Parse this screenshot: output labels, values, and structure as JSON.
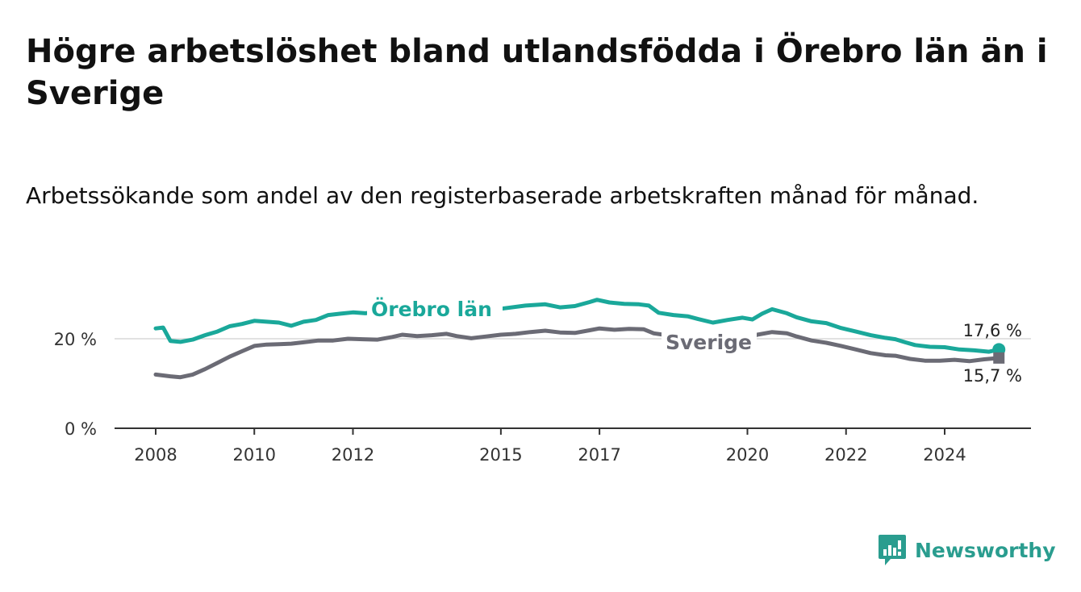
{
  "title": "Högre arbetslöshet bland utlandsfödda i Örebro län än i Sverige",
  "subtitle": "Arbetssökande som andel av den registerbaserade arbetskraften månad för månad.",
  "brand": {
    "name": "Newsworthy",
    "icon": "newsworthy-logo-icon",
    "color": "#2a9d8f"
  },
  "chart_data": {
    "type": "line",
    "ylim": [
      0,
      30
    ],
    "xlim": [
      2008,
      2025.8
    ],
    "y_ticks": [
      {
        "value": 0,
        "label": "0 %"
      },
      {
        "value": 20,
        "label": "20 %"
      }
    ],
    "x_ticks": [
      {
        "value": 2008,
        "label": "2008"
      },
      {
        "value": 2010,
        "label": "2010"
      },
      {
        "value": 2012,
        "label": "2012"
      },
      {
        "value": 2015,
        "label": "2015"
      },
      {
        "value": 2017,
        "label": "2017"
      },
      {
        "value": 2020,
        "label": "2020"
      },
      {
        "value": 2022,
        "label": "2022"
      },
      {
        "value": 2024,
        "label": "2024"
      }
    ],
    "grid": "horizontal",
    "series": [
      {
        "name": "Örebro län",
        "color": "#1aa89a",
        "end_label": "17,6 %",
        "points": [
          [
            2008.0,
            22.3
          ],
          [
            2008.15,
            22.5
          ],
          [
            2008.3,
            19.5
          ],
          [
            2008.5,
            19.3
          ],
          [
            2008.75,
            19.8
          ],
          [
            2009.0,
            20.8
          ],
          [
            2009.25,
            21.6
          ],
          [
            2009.5,
            22.8
          ],
          [
            2009.75,
            23.3
          ],
          [
            2010.0,
            24.0
          ],
          [
            2010.25,
            23.8
          ],
          [
            2010.5,
            23.6
          ],
          [
            2010.75,
            22.9
          ],
          [
            2011.0,
            23.8
          ],
          [
            2011.25,
            24.2
          ],
          [
            2011.5,
            25.3
          ],
          [
            2011.75,
            25.6
          ],
          [
            2012.0,
            25.9
          ],
          [
            2012.25,
            25.7
          ],
          [
            2012.5,
            26.0
          ],
          [
            2013.5,
            25.6
          ],
          [
            2014.5,
            25.8
          ],
          [
            2015.0,
            26.7
          ],
          [
            2015.5,
            27.4
          ],
          [
            2015.9,
            27.7
          ],
          [
            2016.2,
            27.0
          ],
          [
            2016.5,
            27.3
          ],
          [
            2016.8,
            28.2
          ],
          [
            2016.95,
            28.7
          ],
          [
            2017.2,
            28.1
          ],
          [
            2017.5,
            27.8
          ],
          [
            2017.8,
            27.7
          ],
          [
            2018.0,
            27.4
          ],
          [
            2018.2,
            25.8
          ],
          [
            2018.5,
            25.3
          ],
          [
            2018.8,
            25.0
          ],
          [
            2019.0,
            24.4
          ],
          [
            2019.3,
            23.6
          ],
          [
            2019.6,
            24.2
          ],
          [
            2019.9,
            24.7
          ],
          [
            2020.1,
            24.3
          ],
          [
            2020.3,
            25.6
          ],
          [
            2020.5,
            26.6
          ],
          [
            2020.8,
            25.7
          ],
          [
            2021.0,
            24.8
          ],
          [
            2021.3,
            23.9
          ],
          [
            2021.6,
            23.5
          ],
          [
            2021.9,
            22.4
          ],
          [
            2022.2,
            21.6
          ],
          [
            2022.5,
            20.8
          ],
          [
            2022.8,
            20.2
          ],
          [
            2023.0,
            19.9
          ],
          [
            2023.2,
            19.2
          ],
          [
            2023.4,
            18.6
          ],
          [
            2023.7,
            18.2
          ],
          [
            2024.0,
            18.1
          ],
          [
            2024.3,
            17.6
          ],
          [
            2024.6,
            17.4
          ],
          [
            2024.9,
            17.1
          ],
          [
            2025.1,
            17.6
          ]
        ]
      },
      {
        "name": "Sverige",
        "color": "#6b6b75",
        "end_label": "15,7 %",
        "points": [
          [
            2008.0,
            12.0
          ],
          [
            2008.3,
            11.6
          ],
          [
            2008.5,
            11.4
          ],
          [
            2008.75,
            12.0
          ],
          [
            2009.0,
            13.2
          ],
          [
            2009.25,
            14.6
          ],
          [
            2009.5,
            16.0
          ],
          [
            2009.75,
            17.2
          ],
          [
            2010.0,
            18.4
          ],
          [
            2010.25,
            18.7
          ],
          [
            2010.5,
            18.8
          ],
          [
            2010.75,
            18.9
          ],
          [
            2011.0,
            19.2
          ],
          [
            2011.3,
            19.6
          ],
          [
            2011.6,
            19.6
          ],
          [
            2011.9,
            20.0
          ],
          [
            2012.2,
            19.9
          ],
          [
            2012.5,
            19.8
          ],
          [
            2012.8,
            20.4
          ],
          [
            2013.0,
            20.9
          ],
          [
            2013.3,
            20.6
          ],
          [
            2013.6,
            20.8
          ],
          [
            2013.9,
            21.1
          ],
          [
            2014.1,
            20.6
          ],
          [
            2014.4,
            20.1
          ],
          [
            2014.7,
            20.5
          ],
          [
            2015.0,
            20.9
          ],
          [
            2015.3,
            21.1
          ],
          [
            2015.6,
            21.5
          ],
          [
            2015.9,
            21.8
          ],
          [
            2016.2,
            21.4
          ],
          [
            2016.5,
            21.3
          ],
          [
            2016.8,
            21.9
          ],
          [
            2017.0,
            22.3
          ],
          [
            2017.3,
            22.0
          ],
          [
            2017.6,
            22.2
          ],
          [
            2017.9,
            22.1
          ],
          [
            2018.1,
            21.2
          ],
          [
            2018.3,
            20.9
          ],
          [
            2019.8,
            19.6
          ],
          [
            2020.0,
            20.1
          ],
          [
            2020.2,
            20.9
          ],
          [
            2020.5,
            21.5
          ],
          [
            2020.8,
            21.2
          ],
          [
            2021.0,
            20.5
          ],
          [
            2021.3,
            19.6
          ],
          [
            2021.6,
            19.1
          ],
          [
            2021.9,
            18.4
          ],
          [
            2022.2,
            17.6
          ],
          [
            2022.5,
            16.8
          ],
          [
            2022.8,
            16.3
          ],
          [
            2023.0,
            16.2
          ],
          [
            2023.3,
            15.5
          ],
          [
            2023.6,
            15.1
          ],
          [
            2023.9,
            15.1
          ],
          [
            2024.2,
            15.3
          ],
          [
            2024.5,
            15.0
          ],
          [
            2024.8,
            15.4
          ],
          [
            2025.1,
            15.7
          ]
        ]
      }
    ]
  }
}
